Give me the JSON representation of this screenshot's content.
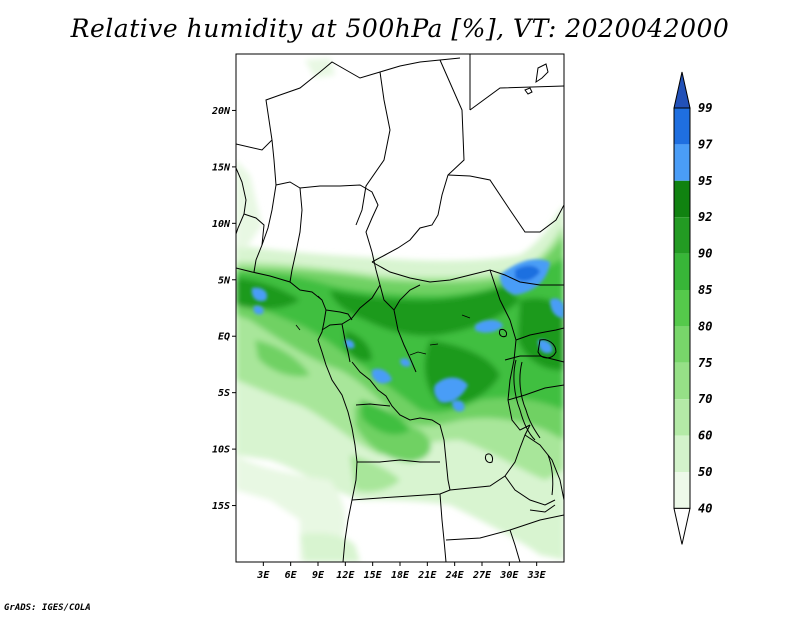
{
  "title": "Relative humidity at 500hPa [%], VT: 2020042000",
  "footer": "GrADS: IGES/COLA",
  "map": {
    "lon_range": [
      0,
      36
    ],
    "lat_range": [
      -20,
      25
    ],
    "lat_ticks": [
      {
        "value": 20,
        "label": "20N"
      },
      {
        "value": 15,
        "label": "15N"
      },
      {
        "value": 10,
        "label": "10N"
      },
      {
        "value": 5,
        "label": "5N"
      },
      {
        "value": 0,
        "label": "EQ"
      },
      {
        "value": -5,
        "label": "5S"
      },
      {
        "value": -10,
        "label": "10S"
      },
      {
        "value": -15,
        "label": "15S"
      }
    ],
    "lon_ticks": [
      {
        "value": 3,
        "label": "3E"
      },
      {
        "value": 6,
        "label": "6E"
      },
      {
        "value": 9,
        "label": "9E"
      },
      {
        "value": 12,
        "label": "12E"
      },
      {
        "value": 15,
        "label": "15E"
      },
      {
        "value": 18,
        "label": "18E"
      },
      {
        "value": 21,
        "label": "21E"
      },
      {
        "value": 24,
        "label": "24E"
      },
      {
        "value": 27,
        "label": "27E"
      },
      {
        "value": 30,
        "label": "30E"
      },
      {
        "value": 33,
        "label": "33E"
      }
    ]
  },
  "colorbar": {
    "levels": [
      "40",
      "50",
      "60",
      "70",
      "75",
      "80",
      "85",
      "90",
      "92",
      "95",
      "97",
      "99"
    ],
    "colors": [
      "#ffffff",
      "#edf9e9",
      "#d3f3cb",
      "#b4eaa7",
      "#96e087",
      "#78d66a",
      "#55c94b",
      "#38b638",
      "#239b23",
      "#108210",
      "#4a9df7",
      "#1f6fe0",
      "#2251b8"
    ]
  }
}
